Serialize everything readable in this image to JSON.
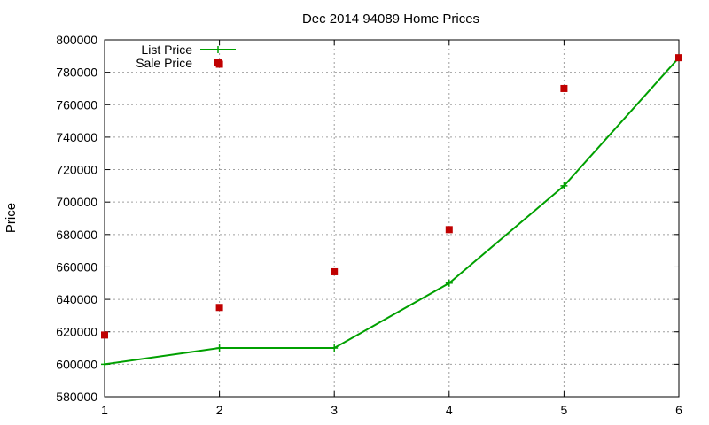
{
  "chart_data": {
    "type": "line",
    "title": "Dec 2014 94089 Home Prices",
    "xlabel": "",
    "ylabel": "Price",
    "xlim": [
      1,
      6
    ],
    "ylim": [
      580000,
      800000
    ],
    "x_ticks": [
      "1",
      "2",
      "3",
      "4",
      "5",
      "6"
    ],
    "y_ticks": [
      "580000",
      "600000",
      "620000",
      "640000",
      "660000",
      "680000",
      "700000",
      "720000",
      "740000",
      "760000",
      "780000",
      "800000"
    ],
    "grid": true,
    "legend": "top-left",
    "series": [
      {
        "name": "List Price",
        "style": "line-with-plus-markers",
        "color": "#00a000",
        "x": [
          1,
          2,
          3,
          4,
          5,
          6
        ],
        "values": [
          600000,
          610000,
          610000,
          650000,
          710000,
          789000
        ]
      },
      {
        "name": "Sale Price",
        "style": "square-points",
        "color": "#c00000",
        "x": [
          1,
          2,
          3,
          4,
          5,
          6
        ],
        "values": [
          618000,
          635000,
          657000,
          683000,
          770000,
          789000
        ]
      }
    ],
    "extra_points": [
      {
        "series": "Sale Price",
        "x": 2,
        "value": 785000
      }
    ]
  }
}
